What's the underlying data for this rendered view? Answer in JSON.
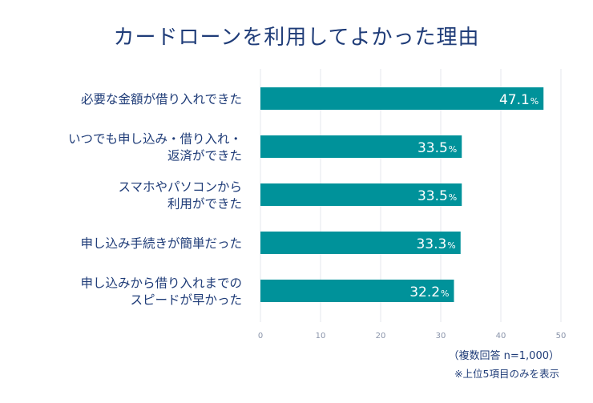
{
  "title": "カードローンを利用してよかった理由",
  "note_respondents": "（複数回答 n=1,000）",
  "note_top5": "※上位5項目のみを表示",
  "colors": {
    "bar": "#00929a",
    "text": "#1f3c78",
    "grid": "#e4e7ec",
    "tick": "#8a94aa"
  },
  "chart_data": {
    "type": "bar",
    "orientation": "horizontal",
    "title": "カードローンを利用してよかった理由",
    "categories": [
      [
        "必要な金額が借り入れできた"
      ],
      [
        "いつでも申し込み・借り入れ・",
        "返済ができた"
      ],
      [
        "スマホやパソコンから",
        "利用ができた"
      ],
      [
        "申し込み手続きが簡単だった"
      ],
      [
        "申し込みから借り入れまでの",
        "スピードが早かった"
      ]
    ],
    "values": [
      47.1,
      33.5,
      33.5,
      33.3,
      32.2
    ],
    "value_unit": "%",
    "xlim": [
      0,
      50
    ],
    "xticks": [
      0,
      10,
      20,
      30,
      40,
      50
    ],
    "grid": true,
    "legend": "none"
  }
}
